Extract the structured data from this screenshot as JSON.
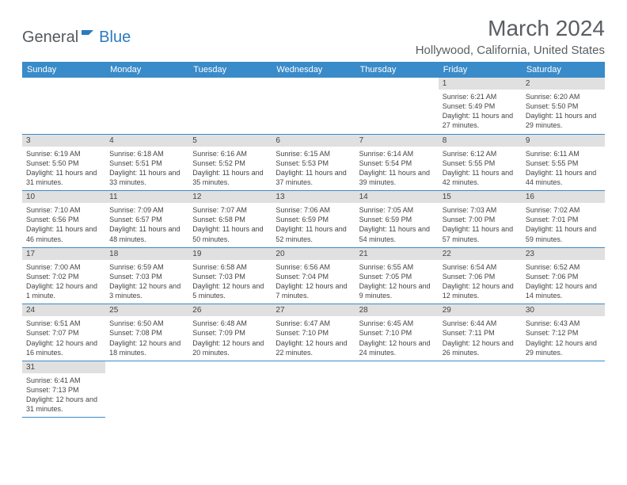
{
  "brand": {
    "word1": "General",
    "word2": "Blue"
  },
  "title": "March 2024",
  "location": "Hollywood, California, United States",
  "colors": {
    "header_bg": "#3a8bc9",
    "header_text": "#ffffff",
    "daynum_bg": "#e0e0e0",
    "row_border": "#3a8bc9",
    "text": "#444444",
    "title_text": "#5a5e62",
    "brand_accent": "#2b7bbf"
  },
  "weekdays": [
    "Sunday",
    "Monday",
    "Tuesday",
    "Wednesday",
    "Thursday",
    "Friday",
    "Saturday"
  ],
  "weeks": [
    [
      {
        "n": "",
        "sr": "",
        "ss": "",
        "dl": ""
      },
      {
        "n": "",
        "sr": "",
        "ss": "",
        "dl": ""
      },
      {
        "n": "",
        "sr": "",
        "ss": "",
        "dl": ""
      },
      {
        "n": "",
        "sr": "",
        "ss": "",
        "dl": ""
      },
      {
        "n": "",
        "sr": "",
        "ss": "",
        "dl": ""
      },
      {
        "n": "1",
        "sr": "Sunrise: 6:21 AM",
        "ss": "Sunset: 5:49 PM",
        "dl": "Daylight: 11 hours and 27 minutes."
      },
      {
        "n": "2",
        "sr": "Sunrise: 6:20 AM",
        "ss": "Sunset: 5:50 PM",
        "dl": "Daylight: 11 hours and 29 minutes."
      }
    ],
    [
      {
        "n": "3",
        "sr": "Sunrise: 6:19 AM",
        "ss": "Sunset: 5:50 PM",
        "dl": "Daylight: 11 hours and 31 minutes."
      },
      {
        "n": "4",
        "sr": "Sunrise: 6:18 AM",
        "ss": "Sunset: 5:51 PM",
        "dl": "Daylight: 11 hours and 33 minutes."
      },
      {
        "n": "5",
        "sr": "Sunrise: 6:16 AM",
        "ss": "Sunset: 5:52 PM",
        "dl": "Daylight: 11 hours and 35 minutes."
      },
      {
        "n": "6",
        "sr": "Sunrise: 6:15 AM",
        "ss": "Sunset: 5:53 PM",
        "dl": "Daylight: 11 hours and 37 minutes."
      },
      {
        "n": "7",
        "sr": "Sunrise: 6:14 AM",
        "ss": "Sunset: 5:54 PM",
        "dl": "Daylight: 11 hours and 39 minutes."
      },
      {
        "n": "8",
        "sr": "Sunrise: 6:12 AM",
        "ss": "Sunset: 5:55 PM",
        "dl": "Daylight: 11 hours and 42 minutes."
      },
      {
        "n": "9",
        "sr": "Sunrise: 6:11 AM",
        "ss": "Sunset: 5:55 PM",
        "dl": "Daylight: 11 hours and 44 minutes."
      }
    ],
    [
      {
        "n": "10",
        "sr": "Sunrise: 7:10 AM",
        "ss": "Sunset: 6:56 PM",
        "dl": "Daylight: 11 hours and 46 minutes."
      },
      {
        "n": "11",
        "sr": "Sunrise: 7:09 AM",
        "ss": "Sunset: 6:57 PM",
        "dl": "Daylight: 11 hours and 48 minutes."
      },
      {
        "n": "12",
        "sr": "Sunrise: 7:07 AM",
        "ss": "Sunset: 6:58 PM",
        "dl": "Daylight: 11 hours and 50 minutes."
      },
      {
        "n": "13",
        "sr": "Sunrise: 7:06 AM",
        "ss": "Sunset: 6:59 PM",
        "dl": "Daylight: 11 hours and 52 minutes."
      },
      {
        "n": "14",
        "sr": "Sunrise: 7:05 AM",
        "ss": "Sunset: 6:59 PM",
        "dl": "Daylight: 11 hours and 54 minutes."
      },
      {
        "n": "15",
        "sr": "Sunrise: 7:03 AM",
        "ss": "Sunset: 7:00 PM",
        "dl": "Daylight: 11 hours and 57 minutes."
      },
      {
        "n": "16",
        "sr": "Sunrise: 7:02 AM",
        "ss": "Sunset: 7:01 PM",
        "dl": "Daylight: 11 hours and 59 minutes."
      }
    ],
    [
      {
        "n": "17",
        "sr": "Sunrise: 7:00 AM",
        "ss": "Sunset: 7:02 PM",
        "dl": "Daylight: 12 hours and 1 minute."
      },
      {
        "n": "18",
        "sr": "Sunrise: 6:59 AM",
        "ss": "Sunset: 7:03 PM",
        "dl": "Daylight: 12 hours and 3 minutes."
      },
      {
        "n": "19",
        "sr": "Sunrise: 6:58 AM",
        "ss": "Sunset: 7:03 PM",
        "dl": "Daylight: 12 hours and 5 minutes."
      },
      {
        "n": "20",
        "sr": "Sunrise: 6:56 AM",
        "ss": "Sunset: 7:04 PM",
        "dl": "Daylight: 12 hours and 7 minutes."
      },
      {
        "n": "21",
        "sr": "Sunrise: 6:55 AM",
        "ss": "Sunset: 7:05 PM",
        "dl": "Daylight: 12 hours and 9 minutes."
      },
      {
        "n": "22",
        "sr": "Sunrise: 6:54 AM",
        "ss": "Sunset: 7:06 PM",
        "dl": "Daylight: 12 hours and 12 minutes."
      },
      {
        "n": "23",
        "sr": "Sunrise: 6:52 AM",
        "ss": "Sunset: 7:06 PM",
        "dl": "Daylight: 12 hours and 14 minutes."
      }
    ],
    [
      {
        "n": "24",
        "sr": "Sunrise: 6:51 AM",
        "ss": "Sunset: 7:07 PM",
        "dl": "Daylight: 12 hours and 16 minutes."
      },
      {
        "n": "25",
        "sr": "Sunrise: 6:50 AM",
        "ss": "Sunset: 7:08 PM",
        "dl": "Daylight: 12 hours and 18 minutes."
      },
      {
        "n": "26",
        "sr": "Sunrise: 6:48 AM",
        "ss": "Sunset: 7:09 PM",
        "dl": "Daylight: 12 hours and 20 minutes."
      },
      {
        "n": "27",
        "sr": "Sunrise: 6:47 AM",
        "ss": "Sunset: 7:10 PM",
        "dl": "Daylight: 12 hours and 22 minutes."
      },
      {
        "n": "28",
        "sr": "Sunrise: 6:45 AM",
        "ss": "Sunset: 7:10 PM",
        "dl": "Daylight: 12 hours and 24 minutes."
      },
      {
        "n": "29",
        "sr": "Sunrise: 6:44 AM",
        "ss": "Sunset: 7:11 PM",
        "dl": "Daylight: 12 hours and 26 minutes."
      },
      {
        "n": "30",
        "sr": "Sunrise: 6:43 AM",
        "ss": "Sunset: 7:12 PM",
        "dl": "Daylight: 12 hours and 29 minutes."
      }
    ],
    [
      {
        "n": "31",
        "sr": "Sunrise: 6:41 AM",
        "ss": "Sunset: 7:13 PM",
        "dl": "Daylight: 12 hours and 31 minutes."
      },
      {
        "n": "",
        "sr": "",
        "ss": "",
        "dl": ""
      },
      {
        "n": "",
        "sr": "",
        "ss": "",
        "dl": ""
      },
      {
        "n": "",
        "sr": "",
        "ss": "",
        "dl": ""
      },
      {
        "n": "",
        "sr": "",
        "ss": "",
        "dl": ""
      },
      {
        "n": "",
        "sr": "",
        "ss": "",
        "dl": ""
      },
      {
        "n": "",
        "sr": "",
        "ss": "",
        "dl": ""
      }
    ]
  ]
}
